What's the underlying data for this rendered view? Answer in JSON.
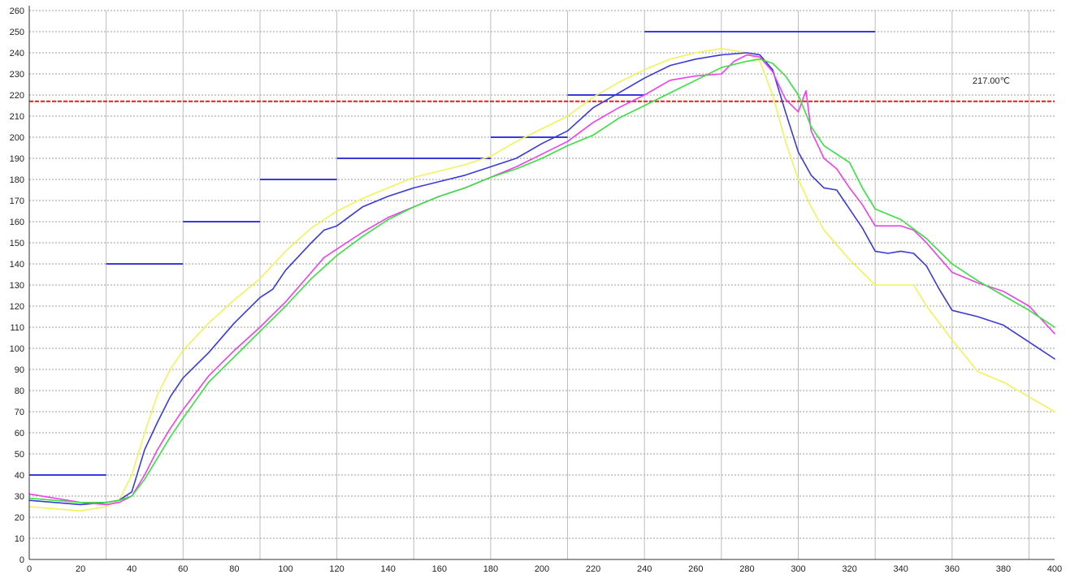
{
  "chart_data": {
    "type": "line",
    "title": "",
    "xlabel": "",
    "ylabel": "",
    "xlim": [
      0,
      400
    ],
    "ylim": [
      0,
      260
    ],
    "x_ticks": [
      0,
      20,
      40,
      60,
      80,
      100,
      120,
      140,
      160,
      180,
      200,
      220,
      240,
      260,
      280,
      300,
      320,
      340,
      360,
      380,
      400
    ],
    "y_ticks": [
      0,
      10,
      20,
      30,
      40,
      50,
      60,
      70,
      80,
      90,
      100,
      110,
      120,
      130,
      140,
      150,
      160,
      170,
      180,
      190,
      200,
      210,
      220,
      230,
      240,
      250,
      260
    ],
    "grid": true,
    "vertical_gridlines": [
      30,
      60,
      90,
      120,
      150,
      180,
      210,
      240,
      270,
      300,
      330,
      360,
      390
    ],
    "threshold": {
      "value": 217,
      "label": "217.00℃",
      "color": "#ff2020"
    },
    "setpoint_segments": {
      "color": "#3a3adc",
      "segments": [
        {
          "x0": 0,
          "x1": 30,
          "y": 40
        },
        {
          "x0": 30,
          "x1": 60,
          "y": 140
        },
        {
          "x0": 60,
          "x1": 90,
          "y": 160
        },
        {
          "x0": 90,
          "x1": 120,
          "y": 180
        },
        {
          "x0": 120,
          "x1": 180,
          "y": 190
        },
        {
          "x0": 180,
          "x1": 210,
          "y": 200
        },
        {
          "x0": 210,
          "x1": 240,
          "y": 220
        },
        {
          "x0": 240,
          "x1": 330,
          "y": 250
        }
      ]
    },
    "series": [
      {
        "color": "#f2f25a",
        "x": [
          0,
          10,
          20,
          30,
          35,
          40,
          45,
          50,
          55,
          60,
          70,
          80,
          90,
          100,
          110,
          120,
          130,
          140,
          150,
          160,
          170,
          180,
          190,
          200,
          210,
          220,
          230,
          240,
          250,
          260,
          270,
          280,
          285,
          290,
          295,
          300,
          305,
          310,
          320,
          330,
          340,
          345,
          350,
          360,
          370,
          380,
          390,
          400
        ],
        "y": [
          25,
          24,
          23,
          25,
          28,
          40,
          60,
          78,
          90,
          99,
          112,
          123,
          133,
          146,
          157,
          165,
          171,
          176,
          181,
          184,
          187,
          191,
          198,
          204,
          210,
          219,
          226,
          232,
          237,
          240,
          242,
          240,
          236,
          220,
          198,
          180,
          167,
          156,
          142,
          130,
          130,
          130,
          120,
          104,
          89,
          84,
          77,
          70
        ]
      },
      {
        "color": "#3a3ad8",
        "x": [
          0,
          10,
          20,
          30,
          35,
          40,
          45,
          50,
          55,
          60,
          70,
          80,
          90,
          95,
          100,
          110,
          115,
          120,
          130,
          140,
          150,
          160,
          170,
          180,
          190,
          200,
          210,
          220,
          230,
          240,
          250,
          260,
          270,
          280,
          285,
          290,
          295,
          300,
          305,
          310,
          315,
          320,
          325,
          330,
          335,
          340,
          345,
          350,
          355,
          360,
          370,
          380,
          390,
          400
        ],
        "y": [
          28,
          27,
          26,
          27,
          28,
          32,
          52,
          65,
          77,
          86,
          98,
          112,
          124,
          128,
          137,
          150,
          156,
          158,
          167,
          172,
          176,
          179,
          182,
          186,
          190,
          197,
          203,
          214,
          221,
          228,
          234,
          237,
          239,
          240,
          239,
          232,
          212,
          193,
          182,
          176,
          175,
          166,
          157,
          146,
          145,
          146,
          145,
          139,
          128,
          118,
          115,
          111,
          103,
          95
        ]
      },
      {
        "color": "#ee40ee",
        "x": [
          0,
          10,
          20,
          30,
          35,
          40,
          45,
          50,
          55,
          60,
          70,
          80,
          90,
          100,
          110,
          115,
          120,
          130,
          140,
          150,
          160,
          170,
          180,
          190,
          200,
          210,
          220,
          230,
          240,
          250,
          260,
          270,
          275,
          280,
          285,
          290,
          295,
          300,
          303,
          305,
          310,
          315,
          320,
          325,
          330,
          335,
          340,
          345,
          350,
          355,
          360,
          370,
          380,
          390,
          400
        ],
        "y": [
          31,
          29,
          27,
          26,
          27,
          30,
          40,
          52,
          62,
          71,
          87,
          99,
          110,
          122,
          136,
          143,
          147,
          155,
          162,
          167,
          172,
          176,
          181,
          186,
          192,
          198,
          207,
          214,
          220,
          227,
          229,
          230,
          236,
          239,
          238,
          231,
          218,
          212,
          222,
          203,
          190,
          185,
          176,
          168,
          158,
          158,
          158,
          156,
          150,
          143,
          136,
          131,
          127,
          120,
          107
        ]
      },
      {
        "color": "#38e040",
        "x": [
          0,
          10,
          20,
          30,
          35,
          40,
          45,
          50,
          55,
          60,
          70,
          80,
          90,
          100,
          110,
          120,
          130,
          140,
          150,
          160,
          170,
          180,
          190,
          200,
          210,
          220,
          230,
          240,
          250,
          260,
          270,
          280,
          285,
          290,
          295,
          300,
          305,
          310,
          315,
          320,
          325,
          330,
          340,
          350,
          360,
          370,
          380,
          390,
          400
        ],
        "y": [
          29,
          28,
          27,
          27,
          28,
          30,
          38,
          48,
          58,
          67,
          84,
          96,
          108,
          120,
          133,
          144,
          153,
          161,
          167,
          172,
          176,
          181,
          185,
          190,
          196,
          201,
          209,
          215,
          221,
          227,
          233,
          236,
          237,
          235,
          229,
          220,
          205,
          196,
          192,
          188,
          176,
          166,
          161,
          152,
          140,
          132,
          125,
          118,
          110
        ]
      }
    ]
  }
}
